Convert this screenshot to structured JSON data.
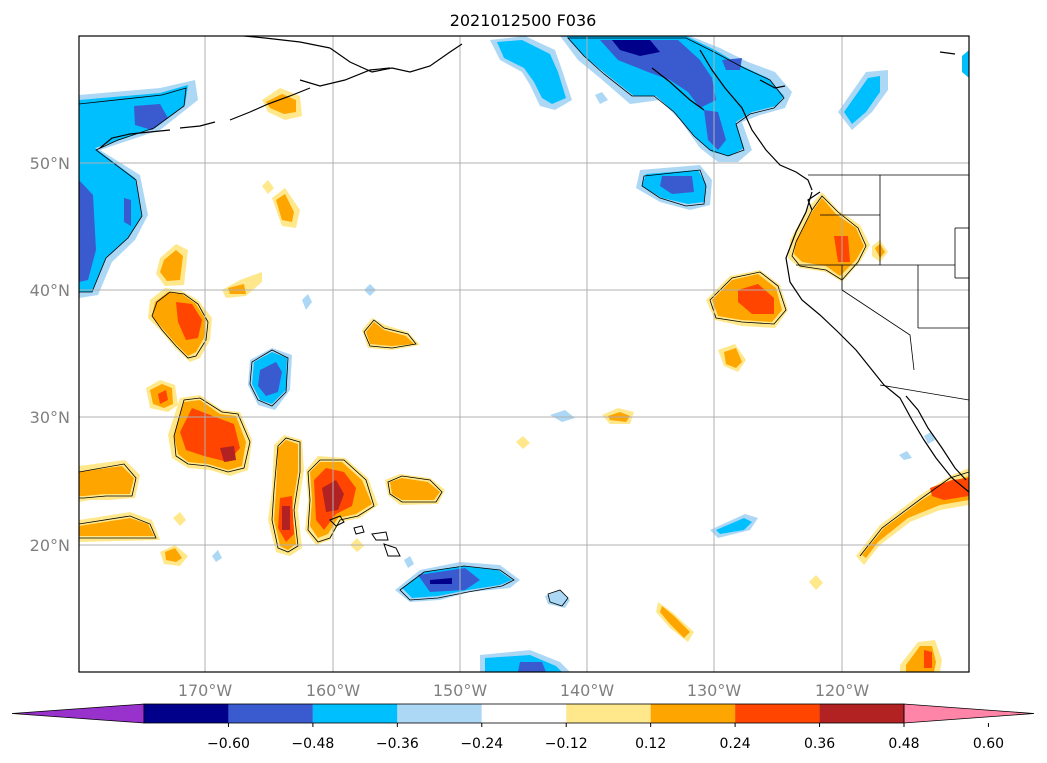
{
  "map": {
    "title": "2021012500 F036",
    "lon_ticks": [
      "170°W",
      "160°W",
      "150°W",
      "140°W",
      "130°W",
      "120°W"
    ],
    "lat_ticks": [
      "50°N",
      "40°N",
      "30°N",
      "20°N"
    ],
    "colors": {
      "ocean": "#ffffff",
      "coast": "#000000",
      "grid": "#b0b0b0",
      "tick_text": "#808080"
    }
  },
  "colorbar": {
    "tick_labels": [
      "−0.60",
      "−0.48",
      "−0.36",
      "−0.24",
      "−0.12",
      "0.12",
      "0.24",
      "0.36",
      "0.48",
      "0.60"
    ],
    "colors": [
      "#9932cc",
      "#00008b",
      "#3a5bd0",
      "#00bfff",
      "#add8f5",
      "#ffffff",
      "#ffe88c",
      "#ffa500",
      "#ff4500",
      "#b22222",
      "#ff85a8"
    ]
  }
}
